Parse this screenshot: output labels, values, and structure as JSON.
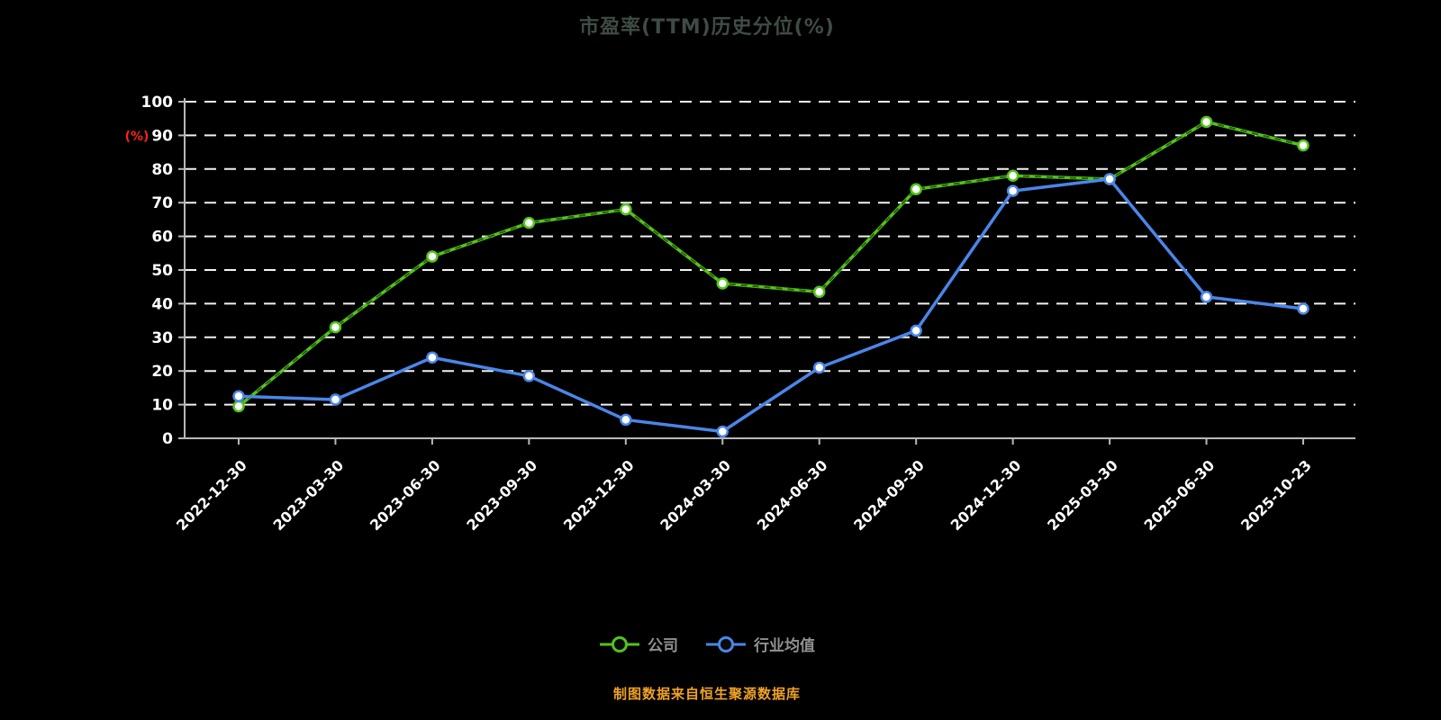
{
  "title": "市盈率(TTM)历史分位(%)",
  "footer": "制图数据来自恒生聚源数据库",
  "legend": [
    {
      "label": "公司",
      "color": "#52c41a"
    },
    {
      "label": "行业均值",
      "color": "#4a86e8"
    }
  ],
  "chart_data": {
    "type": "line",
    "title": "市盈率(TTM)历史分位(%)",
    "xlabel": "",
    "ylabel": "(%)",
    "ylim": [
      0,
      100
    ],
    "ytick_step": 10,
    "grid": "horizontal-dashed",
    "legend_position": "bottom",
    "categories": [
      "2022-12-30",
      "2023-03-30",
      "2023-06-30",
      "2023-09-30",
      "2023-12-30",
      "2024-03-30",
      "2024-06-30",
      "2024-09-30",
      "2024-12-30",
      "2025-03-30",
      "2025-06-30",
      "2025-10-23"
    ],
    "series": [
      {
        "name": "公司",
        "color": "#52c41a",
        "marker": "circle",
        "values": [
          9.5,
          33,
          54,
          64,
          68,
          46,
          43.5,
          74,
          78,
          77,
          94,
          87
        ]
      },
      {
        "name": "行业均值",
        "color": "#4a86e8",
        "marker": "circle",
        "values": [
          12.5,
          11.5,
          24,
          18.5,
          5.5,
          2,
          21,
          32,
          73.5,
          77,
          42,
          38.5
        ]
      }
    ]
  },
  "colors": {
    "background": "#000000",
    "axis": "#b8b8b8",
    "grid": "#ffffff",
    "tick_label": "#ffffff",
    "title": "#3f4b44",
    "legend_text": "#909090",
    "footer": "#f0a225",
    "ylabel": "#ff2020"
  }
}
